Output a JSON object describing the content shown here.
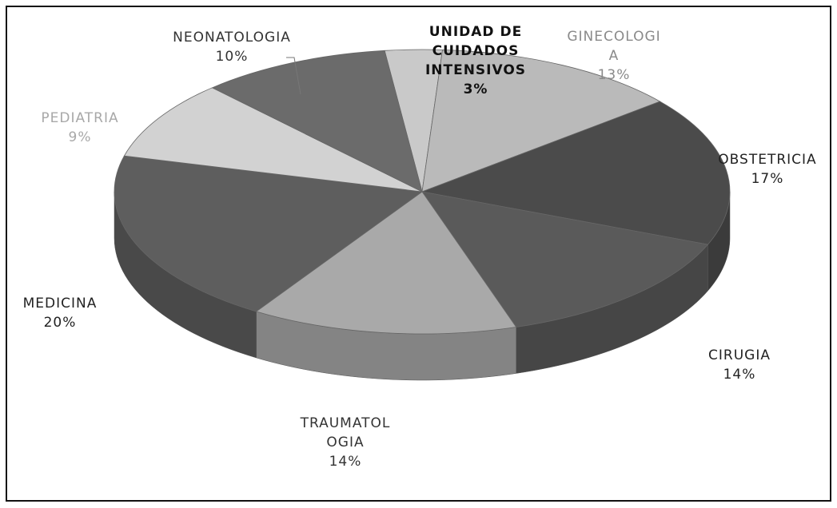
{
  "chart_data": {
    "type": "pie",
    "categories": [
      "UNIDAD DE\nCUIDADOS\nINTENSIVOS",
      "GINECOLOGI\nA",
      "OBSTETRICIA",
      "CIRUGIA",
      "TRAUMATOL\nOGIA",
      "MEDICINA",
      "PEDIATRIA",
      "NEONATOLOGIA"
    ],
    "values": [
      3,
      13,
      17,
      14,
      14,
      20,
      9,
      10
    ],
    "value_labels": [
      "3%",
      "13%",
      "17%",
      "14%",
      "14%",
      "20%",
      "9%",
      "10%"
    ],
    "colors": [
      "#c9c9c9",
      "#bababa",
      "#4b4b4b",
      "#5a5a5a",
      "#a9a9a9",
      "#5e5e5e",
      "#d2d2d2",
      "#6b6b6b"
    ],
    "label_colors": [
      "#111111",
      "#8a8a8a",
      "#222222",
      "#222222",
      "#333333",
      "#222222",
      "#a8a8a8",
      "#333333"
    ]
  }
}
